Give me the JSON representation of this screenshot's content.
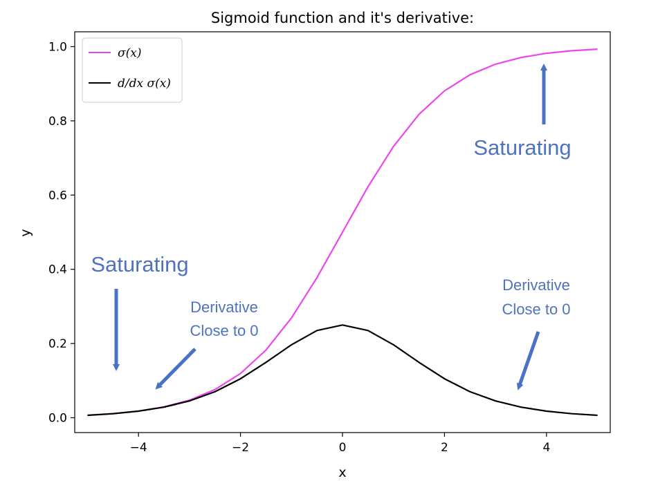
{
  "chart_data": {
    "type": "line",
    "title": "Sigmoid function and it's derivative:",
    "xlabel": "x",
    "ylabel": "y",
    "xlim": [
      -5.25,
      5.25
    ],
    "ylim": [
      -0.04,
      1.04
    ],
    "xticks": [
      -4,
      -2,
      0,
      2,
      4
    ],
    "yticks": [
      0.0,
      0.2,
      0.4,
      0.6,
      0.8,
      1.0
    ],
    "xtick_labels": [
      "−4",
      "−2",
      "0",
      "2",
      "4"
    ],
    "ytick_labels": [
      "0.0",
      "0.2",
      "0.4",
      "0.6",
      "0.8",
      "1.0"
    ],
    "grid": false,
    "legend": "top-left",
    "series": [
      {
        "name": "σ(x)",
        "color": "#ee44ee",
        "x": [
          -5,
          -4.5,
          -4,
          -3.5,
          -3,
          -2.5,
          -2,
          -1.5,
          -1,
          -0.5,
          0,
          0.5,
          1,
          1.5,
          2,
          2.5,
          3,
          3.5,
          4,
          4.5,
          5
        ],
        "y": [
          0.0067,
          0.011,
          0.018,
          0.0293,
          0.0474,
          0.0759,
          0.1192,
          0.1824,
          0.2689,
          0.3775,
          0.5,
          0.6225,
          0.7311,
          0.8176,
          0.8808,
          0.9241,
          0.9526,
          0.9707,
          0.982,
          0.989,
          0.9933
        ]
      },
      {
        "name": "d/dx σ(x)",
        "color": "#000000",
        "x": [
          -5,
          -4.5,
          -4,
          -3.5,
          -3,
          -2.5,
          -2,
          -1.5,
          -1,
          -0.5,
          0,
          0.5,
          1,
          1.5,
          2,
          2.5,
          3,
          3.5,
          4,
          4.5,
          5
        ],
        "y": [
          0.0066,
          0.0109,
          0.0177,
          0.0285,
          0.0452,
          0.0701,
          0.105,
          0.1491,
          0.1966,
          0.235,
          0.25,
          0.235,
          0.1966,
          0.1491,
          0.105,
          0.0701,
          0.0452,
          0.0285,
          0.0177,
          0.0109,
          0.0066
        ]
      }
    ],
    "annotations": [
      {
        "id": "sat-left",
        "lines": [
          "Saturating"
        ],
        "color": "#4f72bf"
      },
      {
        "id": "deriv-left",
        "lines": [
          "Derivative",
          "Close to 0"
        ],
        "color": "#4f72bf"
      },
      {
        "id": "sat-right",
        "lines": [
          "Saturating"
        ],
        "color": "#4f72bf"
      },
      {
        "id": "deriv-right",
        "lines": [
          "Derivative",
          "Close to 0"
        ],
        "color": "#4f72bf"
      }
    ],
    "arrow_color": "#4a72c4"
  }
}
